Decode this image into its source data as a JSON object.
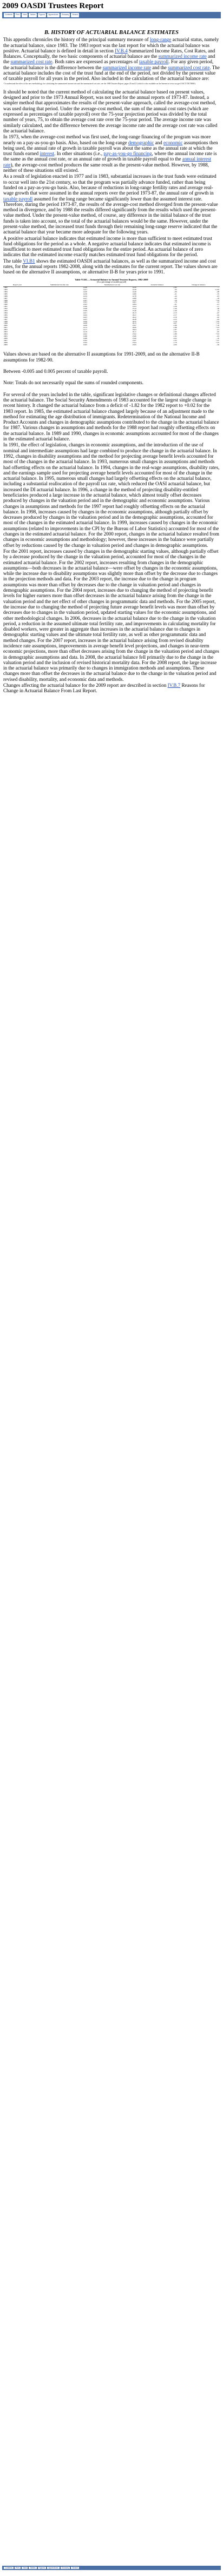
{
  "title": "2009 OASDI Trustees Report",
  "nav": {
    "items": [
      "Contents",
      "Prev",
      "Next",
      "Tables",
      "Figures",
      "Appendices",
      "Glossary",
      "Search"
    ]
  },
  "section": {
    "heading": "B. HISTORY OF ACTUARIAL BALANCE ESTIMATES",
    "p1": [
      "This appendix chronicles the history of the principal summary measure of ",
      {
        "link": "long-range"
      },
      " actuarial status, namely the actuarial balance, since 1983. The 1983 report was the last report for which the actuarial balance was positive. Actuarial balance is defined in detail in section ",
      {
        "link": "IV.B.4"
      },
      " Summarized Income Rates, Cost Rates, and Balances. Conceptually, the two basic components of actuarial balance are the ",
      {
        "link": "summarized income rate"
      },
      " and the ",
      {
        "link": "summarized cost rate"
      },
      ". Both rates are expressed as percentages of ",
      {
        "link": "taxable payroll"
      },
      ". For any given period, the actuarial balance is the difference between the ",
      {
        "link": "summarized income rate"
      },
      " and the ",
      {
        "link": "summarized cost rate"
      },
      ". The actuarial balance includes the cost of the trust fund at the end of the period, not divided by the present value of taxable payroll for all years in the period. Also included in the calculation of the actuarial balance are:"
    ],
    "footnote1": "¹ To understand the effect of the new methodology for calculating the summarized income rate and the summarized cost rate, see the 1988 Trustees Report, pages 20 and 21 (which is also available on the Internet at www.ssa.gov/OACT/TR/TR88/).",
    "p2": [
      "It should be noted that the current method of calculating the actuarial balance based on present values, designed and prior to the 1973 Annual Report, was not used for the annual reports of 1973-87. Instead, a simpler method that approximates the results of the present-value approach, called the average-cost method, was used during that period. Under the average-cost method, the sum of the annual cost rates (which are expressed as percentages of taxable payroll) over the 75-year projection period was divided by the total number of years, 75, to obtain the average cost rate over the 75-year period. The average income rate was similarly calculated, and the difference between the average income rate and the average cost rate was called the actuarial balance."
    ],
    "p3": [
      "In 1973, when the average-cost method was first used, the long-range financing of the program was more nearly on a pay-as-you-go basis. Also, based on the long-range ",
      {
        "link": "demographic"
      },
      " and ",
      {
        "link": "economic"
      },
      " assumptions then being used, the annual rate of growth in taxable payroll was about the same as the annual rate at which the trust funds earned ",
      {
        "link": "interest"
      },
      ". In other situations (i.e., ",
      {
        "link": "pay-as-you-go financing"
      },
      ", where the annual income rate is the same as the annual cost rate, or an annual rate of growth in taxable payroll equal to the ",
      {
        "link": "annual interest rate"
      },
      "), the average-cost method produces the same result as the present-value method. However, by 1988, neither of these situations still existed."
    ],
    "p4": [
      "As a result of legislation enacted in 1977 and in 1983, substantial increases in the trust funds were estimated to occur well into the 21st century, so that the program was partially advance funded, rather than being funded on a pay-as-you-go basis. Also, because of reductions in long-range fertility rates and average real-wage growth that were assumed in the annual reports over the period 1973-87, the annual rate of growth in ",
      {
        "link": "taxable payroll"
      },
      " assumed for the long range became significantly lower than the assumed interest rate. Therefore, during the period 1973-87, the results of the average-cost method diverged from the present-value method in divergence, and by 1988 the results differed significantly from the results which used the present-value method. Under the present-value method, of course, any difference in the initial balance of the trust funds is taken into account, so the total of the actuarial balances would be the same. However, under the present-value method, the increased trust funds through their remaining long-range reserve indicated that the actuarial balance that year became more adequate for the following years."
    ],
    "p5": [
      "A positive actuarial balance indicates that estimated income is more than sufficient to meet estimated trust fund obligations for the period as a whole. A negative actuarial balance indicates that estimated income is insufficient to meet estimated trust fund obligations for the entire period. An actuarial balance of zero indicates that the estimated income exactly matches estimated trust fund obligations for the period."
    ],
    "p6": [
      "The table ",
      {
        "link": "VI.B1"
      },
      " shows the estimated OASDI actuarial balances, as well as the summarized income and cost rates, for the annual reports 1982-2008, along with the estimates for the current report. The values shown are based on the alternative II assumptions, or alternative II-B for years prior to 1991."
    ],
    "p7": [
      "Values shown are based on the alternative II assumptions for 1991-2009, and on the alternative II-B assumptions for 1982-90."
    ],
    "p8": [
      "Between -0.005 and 0.005 percent of taxable payroll."
    ],
    "p9": [
      "Note: Totals do not necessarily equal the sums of rounded components."
    ],
    "p10": [
      "For several of the years included in the table, significant legislative changes or definitional changes affected the actuarial balance. The Social Security Amendments of 1983 accounted for the largest single change in recent history. It changed the actuarial balance from a deficit of -1.82 for the 1982 report to +0.02 for the 1983 report. In 1985, the estimated actuarial balance changed largely because of an adjustment made to the method for estimating the age distribution of immigrants. Redetermination of the National Income and Product Accounts and changes in demographic assumptions contributed to the change in the actuarial balance for 1987. Various changes in assumptions and methods for the 1988 report had roughly offsetting effects on the actuarial balance. In 1989 and 1990, changes in economic assumptions accounted for most of the changes in the estimated actuarial balance."
    ],
    "p11": [
      "In 1991, the effect of legislation, changes in economic assumptions, and the introduction of the use of nominal and intermediate assumptions had large combined to produce the change in the actuarial balance. In 1992, changes in disability assumptions and the method for projecting average benefit levels accounted for most of the changes in the actuarial balance. In 1993, numerous small changes in assumptions and methods had offsetting effects on the actuarial balance. In 1994, changes in the real-wage assumptions, disability rates, and the earnings sample used for projecting average benefit levels accounted for most of the change in the actuarial balance. In 1995, numerous small changes had largely offsetting effects on the actuarial balance, including a substantial reallocation of the payroll tax rate, which reduced the OASI actuarial balance, but increased the DI actuarial balance. In 1996, a change in the method of projecting disability-entitled beneficiaries produced a large increase in the actuarial balance, which almost totally offset decreases produced by changes in the valuation period and in the demographic and economic assumptions. Various changes in assumptions and methods for the 1997 report had roughly offsetting effects on the actuarial balance. In 1998, increases caused by changes in the economic assumptions, although partially offset by decreases produced by changes in the valuation period and in the demographic assumptions, accounted for most of the changes in the estimated actuarial balance. In 1999, increases caused by changes in the economic assumptions (related to improvements in the CPI by the Bureau of Labor Statistics) accounted for most of the changes in the estimated actuarial balance. For the 2000 report, changes in the actuarial balance resulted from changes in economic assumptions and methodology; however, these increases in the balance were partially offset by reductions caused by the change in valuation period and changes in demographic assumptions."
    ],
    "p12": [
      "For the 2001 report, increases caused by changes in the demographic starting values, although partially offset by a decrease produced by the change in the valuation period, accounted for most of the changes in the estimated actuarial balance. For the 2002 report, increases resulting from changes in the demographic assumptions—both decreases in the actuarial balance—were offset by changes in the economic assumptions, while the increase due to disability assumptions was slightly more than offset by the decrease due to changes in the projection methods and data. For the 2003 report, the increase due to the change in program assumptions was more than offset by decreases due to the change in valuation period and changes in demographic assumptions. For the 2004 report, increases due to changing the method of projecting benefit levels for higher earners more than offset decreases in the actuarial balance arising from the change in the valuation period and the net effect of other changes in programmatic data and methods. For the 2005 report, the increase due to changing the method of projecting future average benefit levels was more than offset by decreases due to changes in the valuation period, updated starting values for the economic assumptions, and other methodological changes. In 2006, decreases in the actuarial balance due to the change in the valuation period, a reduction in the assumed ultimate total fertility rate, and improvements in calculating mortality for disabled workers, were greater in aggregate than increases in the actuarial balance due to changes in demographic starting values and the ultimate total fertility rate, as well as other programmatic data and method changes. For the 2007 report, increases in the actuarial balance arising from revised disability incidence rate assumptions, improvements in average benefit level projections, and changes in near-term economic projections, more than offset decreases arising from the change in the valuation period and changes in demographic assumptions and data. In 2008, the actuarial balance fell primarily due to the change in the valuation period and the inclusion of revised historical mortality data. For the 2008 report, the large increase in the actuarial balance was primarily due to changes in immigration methods and assumptions. These changes more than offset the decreases in the actuarial balance due to the change in the valuation period and revised disability, mortality, and economic data and methods."
    ],
    "p13": [
      "Changes affecting the actuarial balance for the 2009 report are described in section ",
      {
        "link": "IV.B.7"
      },
      " Reasons for Change in Actuarial Balance From Last Report."
    ]
  },
  "table": {
    "title": "Table VI.B1.—Actuarial Balance in Annual Trustees Reports, 1982-2009",
    "subtitle": "[As a percentage of taxable payroll]",
    "columns": [
      "Report year",
      "Summarized income rate",
      "Summarized cost rate",
      "Actuarial balance",
      "Change in balance"
    ],
    "rows": [
      [
        "1982",
        "12.68",
        "14.50",
        "-1.82",
        "—"
      ],
      [
        "1983",
        "14.41",
        "14.39",
        ".02",
        "+1.84"
      ],
      [
        "1984",
        "14.40",
        "14.46",
        "-.06",
        "-.08"
      ],
      [
        "1985",
        "14.39",
        "14.80",
        "-.41",
        "-.35"
      ],
      [
        "1986",
        "14.34",
        "14.78",
        "-.44",
        "-.03"
      ],
      [
        "1987",
        "14.27",
        "14.89",
        "-.62",
        "-.18"
      ],
      [
        "1988",
        "13.87",
        "14.45",
        "-.58",
        "+.04"
      ],
      [
        "1989",
        "13.91",
        "14.61",
        "-.70",
        "-.12"
      ],
      [
        "1990",
        "13.93",
        "14.84",
        "-.91",
        "-.21"
      ],
      [
        "1991",
        "13.96",
        "15.04",
        "-1.08",
        "-.17"
      ],
      [
        "1992",
        "13.98",
        "15.44",
        "-1.46",
        "-.38"
      ],
      [
        "1993",
        "13.99",
        "15.46",
        "-1.46",
        "(¹)"
      ],
      [
        "1994",
        "14.01",
        "16.13",
        "-2.13",
        "-.67"
      ],
      [
        "1995",
        "14.04",
        "16.21",
        "-2.17",
        "-.04"
      ],
      [
        "1996",
        "14.03",
        "16.22",
        "-2.19",
        "-.02"
      ],
      [
        "1997",
        "14.05",
        "16.28",
        "-2.23",
        "-.04"
      ],
      [
        "1998",
        "14.06",
        "16.25",
        "-2.19",
        "+.04"
      ],
      [
        "1999",
        "14.08",
        "16.15",
        "-2.07",
        "+.12"
      ],
      [
        "2000",
        "14.08",
        "15.97",
        "-1.89",
        "+.18"
      ],
      [
        "2001",
        "14.14",
        "16.00",
        "-1.86",
        "+.03"
      ],
      [
        "2002",
        "14.17",
        "16.04",
        "-1.87",
        "-.01"
      ],
      [
        "2003",
        "14.19",
        "16.11",
        "-1.92",
        "-.05"
      ],
      [
        "2004",
        "14.02",
        "15.92",
        "-1.89",
        "+.03"
      ],
      [
        "2005",
        "13.88",
        "15.80",
        "-1.92",
        "-.03"
      ],
      [
        "2006",
        "13.88",
        "15.90",
        "-2.02",
        "-.10"
      ],
      [
        "2007",
        "13.92",
        "15.87",
        "-1.95",
        "+.07"
      ],
      [
        "2008",
        "13.94",
        "15.64",
        "-1.70",
        "+.25"
      ],
      [
        "2009",
        "13.95",
        "15.95",
        "-2.00",
        "-.30"
      ]
    ]
  },
  "footer": {
    "items": [
      "Contents",
      "Prev",
      "Next",
      "Tables",
      "Figures",
      "Appendices",
      "Glossary",
      "Search"
    ]
  }
}
